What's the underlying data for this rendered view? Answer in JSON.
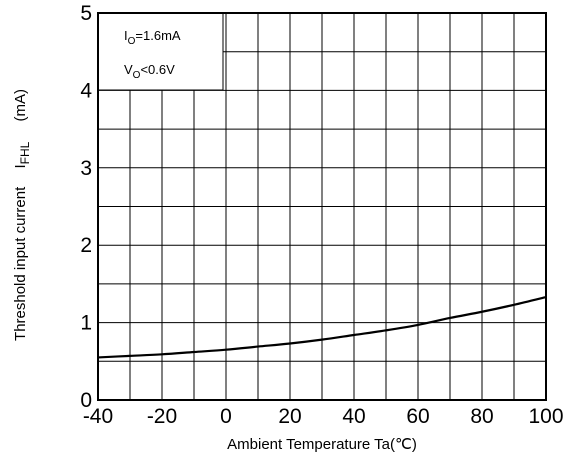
{
  "chart_data": {
    "type": "line",
    "title": "",
    "xlabel": "Ambient Temperature Ta(℃)",
    "ylabel": {
      "text": "Threshold input current",
      "symbol_main": "I",
      "symbol_sub": "FHL",
      "unit": "(mA)"
    },
    "xlim": [
      -40,
      100
    ],
    "ylim": [
      0,
      5
    ],
    "x_ticks": [
      "-40",
      "-20",
      "0",
      "20",
      "40",
      "60",
      "80",
      "100"
    ],
    "y_ticks": [
      "0",
      "1",
      "2",
      "3",
      "4",
      "5"
    ],
    "grid": true,
    "legend": "none",
    "annotation": {
      "line1": {
        "main": "I",
        "sub": "O",
        "rest": "=1.6mA"
      },
      "line2": {
        "main": "V",
        "sub": "O",
        "rest": "<0.6V"
      },
      "position": "top-left"
    },
    "series": [
      {
        "x": [
          -40,
          -30,
          -20,
          -10,
          0,
          10,
          20,
          30,
          40,
          50,
          60,
          70,
          80,
          90,
          100
        ],
        "values": [
          0.55,
          0.57,
          0.59,
          0.62,
          0.65,
          0.69,
          0.73,
          0.78,
          0.84,
          0.9,
          0.97,
          1.06,
          1.14,
          1.23,
          1.33
        ]
      }
    ],
    "colors": {
      "line": "#000000",
      "grid": "#000000",
      "background": "#ffffff"
    }
  }
}
